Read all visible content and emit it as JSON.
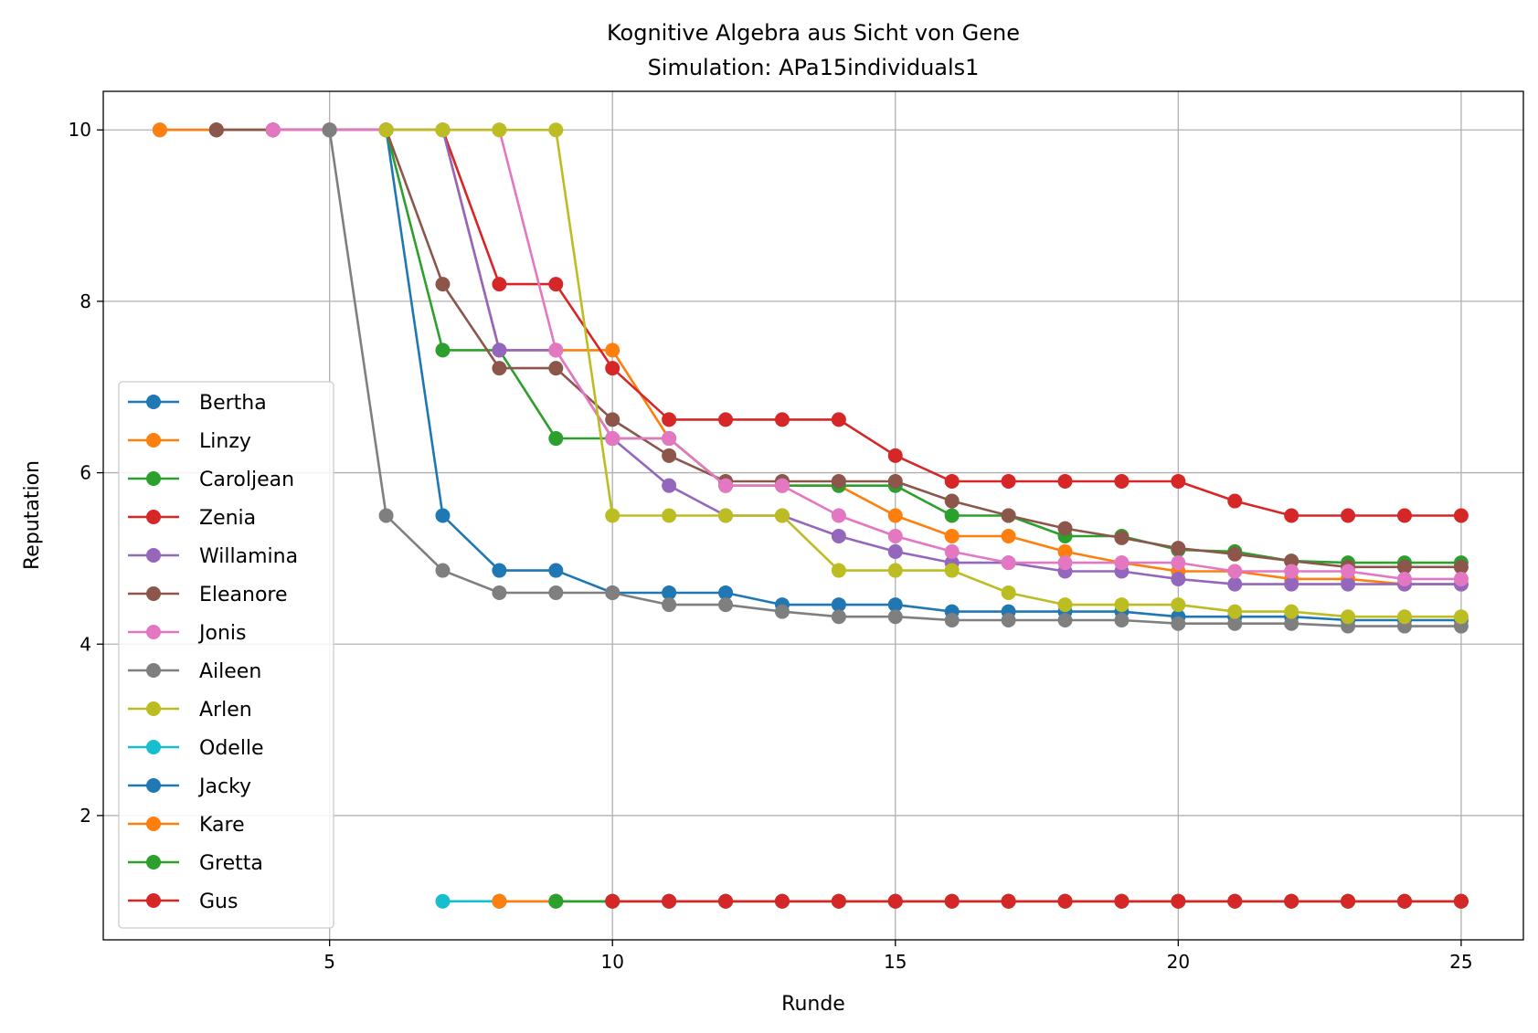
{
  "chart_data": {
    "type": "line",
    "title": "Kognitive Algebra aus Sicht von Gene",
    "subtitle": "Simulation: APa15individuals1",
    "xlabel": "Runde",
    "ylabel": "Reputation",
    "xlim": [
      1,
      26.1
    ],
    "ylim": [
      0.55,
      10.45
    ],
    "xticks": [
      5,
      10,
      15,
      20,
      25
    ],
    "yticks": [
      2,
      4,
      6,
      8,
      10
    ],
    "grid": true,
    "legend_position": "lower-left",
    "series": [
      {
        "name": "Bertha",
        "color": "#1f77b4",
        "x": [
          2,
          3,
          4,
          5,
          6,
          7,
          8,
          9,
          10,
          11,
          12,
          13,
          14,
          15,
          16,
          17,
          18,
          19,
          20,
          21,
          22,
          23,
          24,
          25
        ],
        "y": [
          10,
          10,
          10,
          10,
          10,
          5.5,
          4.86,
          4.86,
          4.6,
          4.6,
          4.6,
          4.46,
          4.46,
          4.46,
          4.38,
          4.38,
          4.38,
          4.38,
          4.32,
          4.32,
          4.32,
          4.28,
          4.28,
          4.28
        ]
      },
      {
        "name": "Linzy",
        "color": "#ff7f0e",
        "x": [
          2,
          3,
          4,
          5,
          6,
          7,
          8,
          9,
          10,
          11,
          12,
          13,
          14,
          15,
          16,
          17,
          18,
          19,
          20,
          21,
          22,
          23,
          24,
          25
        ],
        "y": [
          10,
          10,
          10,
          10,
          10,
          10,
          7.43,
          7.43,
          7.43,
          6.4,
          5.85,
          5.85,
          5.85,
          5.5,
          5.26,
          5.26,
          5.08,
          4.95,
          4.85,
          4.85,
          4.76,
          4.76,
          4.7,
          4.7
        ]
      },
      {
        "name": "Caroljean",
        "color": "#2ca02c",
        "x": [
          3,
          4,
          5,
          6,
          7,
          8,
          9,
          10,
          11,
          12,
          13,
          14,
          15,
          16,
          17,
          18,
          19,
          20,
          21,
          22,
          23,
          24,
          25
        ],
        "y": [
          10,
          10,
          10,
          10,
          7.43,
          7.43,
          6.4,
          6.4,
          6.4,
          5.85,
          5.85,
          5.85,
          5.85,
          5.5,
          5.5,
          5.26,
          5.26,
          5.1,
          5.08,
          4.97,
          4.95,
          4.95,
          4.95
        ]
      },
      {
        "name": "Zenia",
        "color": "#d62728",
        "x": [
          3,
          4,
          5,
          6,
          7,
          8,
          9,
          10,
          11,
          12,
          13,
          14,
          15,
          16,
          17,
          18,
          19,
          20,
          21,
          22,
          23,
          24,
          25
        ],
        "y": [
          10,
          10,
          10,
          10,
          10,
          8.2,
          8.2,
          7.22,
          6.62,
          6.62,
          6.62,
          6.62,
          6.2,
          5.9,
          5.9,
          5.9,
          5.9,
          5.9,
          5.67,
          5.5,
          5.5,
          5.5,
          5.5
        ]
      },
      {
        "name": "Willamina",
        "color": "#9467bd",
        "x": [
          4,
          5,
          6,
          7,
          8,
          9,
          10,
          11,
          12,
          13,
          14,
          15,
          16,
          17,
          18,
          19,
          20,
          21,
          22,
          23,
          24,
          25
        ],
        "y": [
          10,
          10,
          10,
          10,
          7.43,
          7.43,
          6.4,
          5.85,
          5.5,
          5.5,
          5.26,
          5.08,
          4.95,
          4.95,
          4.85,
          4.85,
          4.76,
          4.7,
          4.7,
          4.7,
          4.7,
          4.7
        ]
      },
      {
        "name": "Eleanore",
        "color": "#8c564b",
        "x": [
          3,
          4,
          5,
          6,
          7,
          8,
          9,
          10,
          11,
          12,
          13,
          14,
          15,
          16,
          17,
          18,
          19,
          20,
          21,
          22,
          23,
          24,
          25
        ],
        "y": [
          10,
          10,
          10,
          10,
          8.2,
          7.22,
          7.22,
          6.62,
          6.2,
          5.9,
          5.9,
          5.9,
          5.9,
          5.67,
          5.5,
          5.35,
          5.24,
          5.12,
          5.05,
          4.97,
          4.9,
          4.9,
          4.9
        ]
      },
      {
        "name": "Jonis",
        "color": "#e377c2",
        "x": [
          4,
          5,
          6,
          7,
          8,
          9,
          10,
          11,
          12,
          13,
          14,
          15,
          16,
          17,
          18,
          19,
          20,
          21,
          22,
          23,
          24,
          25
        ],
        "y": [
          10,
          10,
          10,
          10,
          10,
          7.43,
          6.4,
          6.4,
          5.85,
          5.85,
          5.5,
          5.26,
          5.08,
          4.95,
          4.95,
          4.95,
          4.95,
          4.85,
          4.85,
          4.85,
          4.76,
          4.76
        ]
      },
      {
        "name": "Aileen",
        "color": "#7f7f7f",
        "x": [
          5,
          6,
          7,
          8,
          9,
          10,
          11,
          12,
          13,
          14,
          15,
          16,
          17,
          18,
          19,
          20,
          21,
          22,
          23,
          24,
          25
        ],
        "y": [
          10,
          5.5,
          4.86,
          4.6,
          4.6,
          4.6,
          4.46,
          4.46,
          4.38,
          4.32,
          4.32,
          4.28,
          4.28,
          4.28,
          4.28,
          4.24,
          4.24,
          4.24,
          4.21,
          4.21,
          4.21
        ]
      },
      {
        "name": "Arlen",
        "color": "#bcbd22",
        "x": [
          6,
          7,
          8,
          9,
          10,
          11,
          12,
          13,
          14,
          15,
          16,
          17,
          18,
          19,
          20,
          21,
          22,
          23,
          24,
          25
        ],
        "y": [
          10,
          10,
          10,
          10,
          5.5,
          5.5,
          5.5,
          5.5,
          4.86,
          4.86,
          4.86,
          4.6,
          4.46,
          4.46,
          4.46,
          4.38,
          4.38,
          4.32,
          4.32,
          4.32
        ]
      },
      {
        "name": "Odelle",
        "color": "#17becf",
        "x": [
          7,
          8,
          9,
          10,
          11,
          12,
          13,
          14,
          15,
          16,
          17,
          18,
          19,
          20,
          21,
          22,
          23,
          24,
          25
        ],
        "y": [
          1,
          1,
          1,
          1,
          1,
          1,
          1,
          1,
          1,
          1,
          1,
          1,
          1,
          1,
          1,
          1,
          1,
          1,
          1
        ]
      },
      {
        "name": "Jacky",
        "color": "#1f77b4",
        "x": [
          8,
          9,
          10,
          11,
          12,
          13,
          14,
          15,
          16,
          17,
          18,
          19,
          20,
          21,
          22,
          23,
          24,
          25
        ],
        "y": [
          1,
          1,
          1,
          1,
          1,
          1,
          1,
          1,
          1,
          1,
          1,
          1,
          1,
          1,
          1,
          1,
          1,
          1
        ]
      },
      {
        "name": "Kare",
        "color": "#ff7f0e",
        "x": [
          8,
          9,
          10,
          11,
          12,
          13,
          14,
          15,
          16,
          17,
          18,
          19,
          20,
          21,
          22,
          23,
          24,
          25
        ],
        "y": [
          1,
          1,
          1,
          1,
          1,
          1,
          1,
          1,
          1,
          1,
          1,
          1,
          1,
          1,
          1,
          1,
          1,
          1
        ]
      },
      {
        "name": "Gretta",
        "color": "#2ca02c",
        "x": [
          9,
          10,
          11,
          12,
          13,
          14,
          15,
          16,
          17,
          18,
          19,
          20,
          21,
          22,
          23,
          24,
          25
        ],
        "y": [
          1,
          1,
          1,
          1,
          1,
          1,
          1,
          1,
          1,
          1,
          1,
          1,
          1,
          1,
          1,
          1,
          1
        ]
      },
      {
        "name": "Gus",
        "color": "#d62728",
        "x": [
          10,
          11,
          12,
          13,
          14,
          15,
          16,
          17,
          18,
          19,
          20,
          21,
          22,
          23,
          24,
          25
        ],
        "y": [
          1,
          1,
          1,
          1,
          1,
          1,
          1,
          1,
          1,
          1,
          1,
          1,
          1,
          1,
          1,
          1
        ]
      }
    ]
  }
}
